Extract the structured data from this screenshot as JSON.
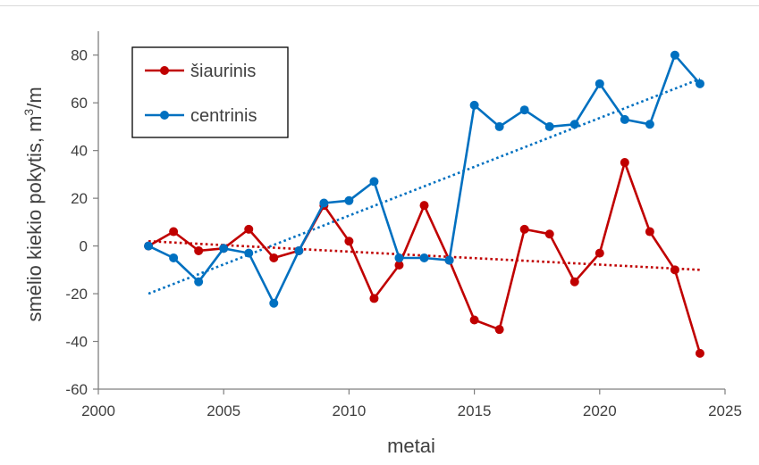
{
  "chart_data": {
    "type": "line",
    "xlabel": "metai",
    "ylabel": "smėlio kiekio pokytis, m³/m",
    "ylabel_main": "smėlio kiekio pokytis, m",
    "ylabel_sup": "3",
    "ylabel_tail": "/m",
    "xlim": [
      2000,
      2025
    ],
    "ylim": [
      -60,
      90
    ],
    "xticks": [
      2000,
      2005,
      2010,
      2015,
      2020,
      2025
    ],
    "yticks": [
      -60,
      -40,
      -20,
      0,
      20,
      40,
      60,
      80
    ],
    "grid": false,
    "legend_position": "top-left",
    "series": [
      {
        "name": "šiaurinis",
        "color": "#c00000",
        "x": [
          2002,
          2003,
          2004,
          2005,
          2006,
          2007,
          2008,
          2009,
          2010,
          2011,
          2012,
          2013,
          2014,
          2015,
          2016,
          2017,
          2018,
          2019,
          2020,
          2021,
          2022,
          2023,
          2024
        ],
        "y": [
          0,
          6,
          -2,
          -1,
          7,
          -5,
          -2,
          17,
          2,
          -22,
          -8,
          17,
          -6,
          -31,
          -35,
          7,
          5,
          -15,
          -3,
          35,
          6,
          -10,
          -45
        ],
        "trend": [
          2,
          -10
        ]
      },
      {
        "name": "centrinis",
        "color": "#0070c0",
        "x": [
          2002,
          2003,
          2004,
          2005,
          2006,
          2007,
          2008,
          2009,
          2010,
          2011,
          2012,
          2013,
          2014,
          2015,
          2016,
          2017,
          2018,
          2019,
          2020,
          2021,
          2022,
          2023,
          2024
        ],
        "y": [
          0,
          -5,
          -15,
          -1,
          -3,
          -24,
          -2,
          18,
          19,
          27,
          -5,
          -5,
          -6,
          59,
          50,
          57,
          50,
          51,
          68,
          53,
          51,
          80,
          68
        ],
        "trend": [
          -20,
          70
        ]
      }
    ]
  }
}
